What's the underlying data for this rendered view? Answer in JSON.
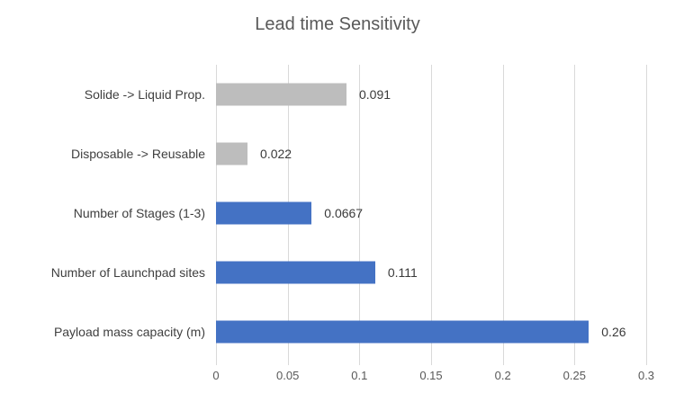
{
  "chart_data": {
    "type": "bar",
    "orientation": "horizontal",
    "title": "Lead time Sensitivity",
    "categories": [
      "Solide -> Liquid Prop.",
      "Disposable -> Reusable",
      "Number of Stages (1-3)",
      "Number of Launchpad sites",
      "Payload mass capacity (m)"
    ],
    "values": [
      0.091,
      0.022,
      0.0667,
      0.111,
      0.26
    ],
    "data_labels": [
      "0.091",
      "0.022",
      "0.0667",
      "0.111",
      "0.26"
    ],
    "bar_colors": [
      "#BDBDBD",
      "#BDBDBD",
      "#4472C4",
      "#4472C4",
      "#4472C4"
    ],
    "xlim": [
      0,
      0.3
    ],
    "x_ticks": [
      {
        "label": "0",
        "value": 0
      },
      {
        "label": "0.05",
        "value": 0.05
      },
      {
        "label": "0.1",
        "value": 0.1
      },
      {
        "label": "0.15",
        "value": 0.15
      },
      {
        "label": "0.2",
        "value": 0.2
      },
      {
        "label": "0.25",
        "value": 0.25
      },
      {
        "label": "0.3",
        "value": 0.3
      }
    ],
    "grid": true,
    "legend": false,
    "xlabel": "",
    "ylabel": ""
  },
  "style": {
    "accent_blue": "#4472C4",
    "accent_gray": "#BDBDBD",
    "gridline_color": "#D9D9D9",
    "title_color": "#595959",
    "tick_color": "#595959",
    "label_color": "#3f3f3f"
  }
}
